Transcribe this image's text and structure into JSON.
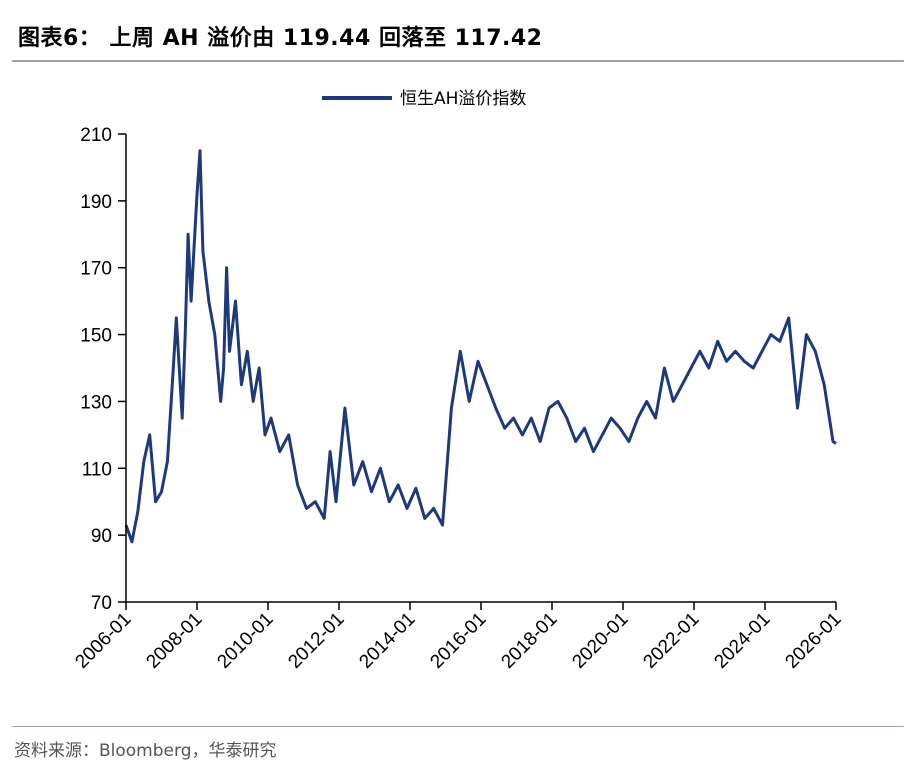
{
  "header": {
    "title": "图表6：  上周 AH 溢价由 119.44 回落至 117.42"
  },
  "footer": {
    "source": "资料来源：Bloomberg，华泰研究"
  },
  "colors": {
    "series": "#1f3a7a",
    "axis": "#000000",
    "rule": "#9aa3ad"
  },
  "chart_data": {
    "type": "line",
    "legend": [
      "恒生AH溢价指数"
    ],
    "legend_position": "top-center",
    "grid": false,
    "ylim": [
      70,
      210
    ],
    "yticks": [
      70,
      90,
      110,
      130,
      150,
      170,
      190,
      210
    ],
    "xlim": [
      "2006-01",
      "2026-01"
    ],
    "xticks": [
      "2006-01",
      "2008-01",
      "2010-01",
      "2012-01",
      "2014-01",
      "2016-01",
      "2018-01",
      "2020-01",
      "2022-01",
      "2024-01",
      "2026-01"
    ],
    "series": [
      {
        "name": "恒生AH溢价指数",
        "x": [
          "2006-01",
          "2006-03",
          "2006-05",
          "2006-07",
          "2006-09",
          "2006-11",
          "2007-01",
          "2007-03",
          "2007-05",
          "2007-06",
          "2007-08",
          "2007-09",
          "2007-10",
          "2007-11",
          "2008-01",
          "2008-02",
          "2008-03",
          "2008-05",
          "2008-07",
          "2008-09",
          "2008-10",
          "2008-11",
          "2008-12",
          "2009-02",
          "2009-04",
          "2009-06",
          "2009-08",
          "2009-10",
          "2009-12",
          "2010-02",
          "2010-05",
          "2010-08",
          "2010-11",
          "2011-02",
          "2011-05",
          "2011-08",
          "2011-10",
          "2011-12",
          "2012-03",
          "2012-06",
          "2012-09",
          "2012-12",
          "2013-03",
          "2013-06",
          "2013-09",
          "2013-12",
          "2014-03",
          "2014-06",
          "2014-09",
          "2014-12",
          "2015-03",
          "2015-06",
          "2015-09",
          "2015-12",
          "2016-03",
          "2016-06",
          "2016-09",
          "2016-12",
          "2017-03",
          "2017-06",
          "2017-09",
          "2017-12",
          "2018-03",
          "2018-06",
          "2018-09",
          "2018-12",
          "2019-03",
          "2019-06",
          "2019-09",
          "2019-12",
          "2020-03",
          "2020-06",
          "2020-09",
          "2020-12",
          "2021-03",
          "2021-06",
          "2021-09",
          "2021-12",
          "2022-03",
          "2022-06",
          "2022-09",
          "2022-12",
          "2023-03",
          "2023-06",
          "2023-09",
          "2023-12",
          "2024-03",
          "2024-06",
          "2024-09",
          "2024-12",
          "2025-03",
          "2025-06",
          "2025-09",
          "2025-12",
          "2026-01"
        ],
        "values": [
          93,
          88,
          97,
          112,
          120,
          100,
          103,
          112,
          140,
          155,
          125,
          150,
          180,
          160,
          192,
          205,
          175,
          160,
          150,
          130,
          140,
          170,
          145,
          160,
          135,
          145,
          130,
          140,
          120,
          125,
          115,
          120,
          105,
          98,
          100,
          95,
          115,
          100,
          128,
          105,
          112,
          103,
          110,
          100,
          105,
          98,
          104,
          95,
          98,
          93,
          128,
          145,
          130,
          142,
          135,
          128,
          122,
          125,
          120,
          125,
          118,
          128,
          130,
          125,
          118,
          122,
          115,
          120,
          125,
          122,
          118,
          125,
          130,
          125,
          140,
          130,
          135,
          140,
          145,
          140,
          148,
          142,
          145,
          142,
          140,
          145,
          150,
          148,
          155,
          128,
          150,
          145,
          135,
          118,
          117.42
        ]
      }
    ]
  }
}
